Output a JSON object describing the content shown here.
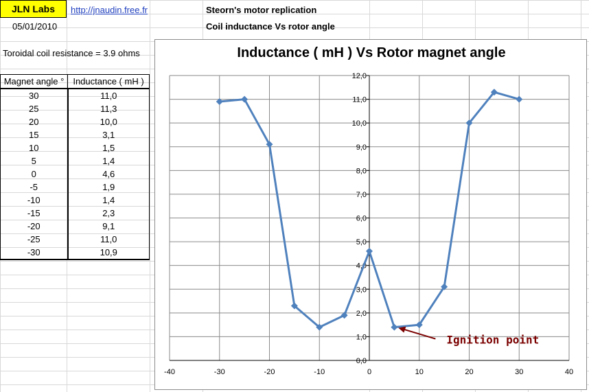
{
  "header": {
    "logo": "JLN Labs",
    "link": "http://jnaudin.free.fr",
    "date": "05/01/2010",
    "title1": "Steorn's motor replication",
    "title2": "Coil inductance Vs rotor angle",
    "resistance_note": "Toroidal coil resistance = 3.9 ohms"
  },
  "table": {
    "headers": [
      "Magnet angle °",
      "Inductance ( mH )"
    ],
    "rows": [
      [
        "30",
        "11,0"
      ],
      [
        "25",
        "11,3"
      ],
      [
        "20",
        "10,0"
      ],
      [
        "15",
        "3,1"
      ],
      [
        "10",
        "1,5"
      ],
      [
        "5",
        "1,4"
      ],
      [
        "0",
        "4,6"
      ],
      [
        "-5",
        "1,9"
      ],
      [
        "-10",
        "1,4"
      ],
      [
        "-15",
        "2,3"
      ],
      [
        "-20",
        "9,1"
      ],
      [
        "-25",
        "11,0"
      ],
      [
        "-30",
        "10,9"
      ]
    ]
  },
  "chart_data": {
    "type": "scatter",
    "title": "Inductance ( mH ) Vs Rotor magnet angle",
    "xlabel": "",
    "ylabel": "",
    "xlim": [
      -40,
      40
    ],
    "ylim": [
      0,
      12
    ],
    "x_ticks": [
      "-40",
      "-30",
      "-20",
      "-10",
      "0",
      "10",
      "20",
      "30",
      "40"
    ],
    "y_ticks": [
      "0,0",
      "1,0",
      "2,0",
      "3,0",
      "4,0",
      "5,0",
      "6,0",
      "7,0",
      "8,0",
      "9,0",
      "10,0",
      "11,0",
      "12,0"
    ],
    "grid": true,
    "series": [
      {
        "color": "#4f81bd",
        "x": [
          -30,
          -25,
          -20,
          -15,
          -10,
          -5,
          0,
          5,
          10,
          15,
          20,
          25,
          30
        ],
        "y": [
          10.9,
          11.0,
          9.1,
          2.3,
          1.4,
          1.9,
          4.6,
          1.4,
          1.5,
          3.1,
          10.0,
          11.3,
          11.0
        ]
      }
    ],
    "annotation": {
      "text": "Ignition point",
      "x": 5,
      "y": 1.4,
      "color": "#7b0000"
    }
  }
}
